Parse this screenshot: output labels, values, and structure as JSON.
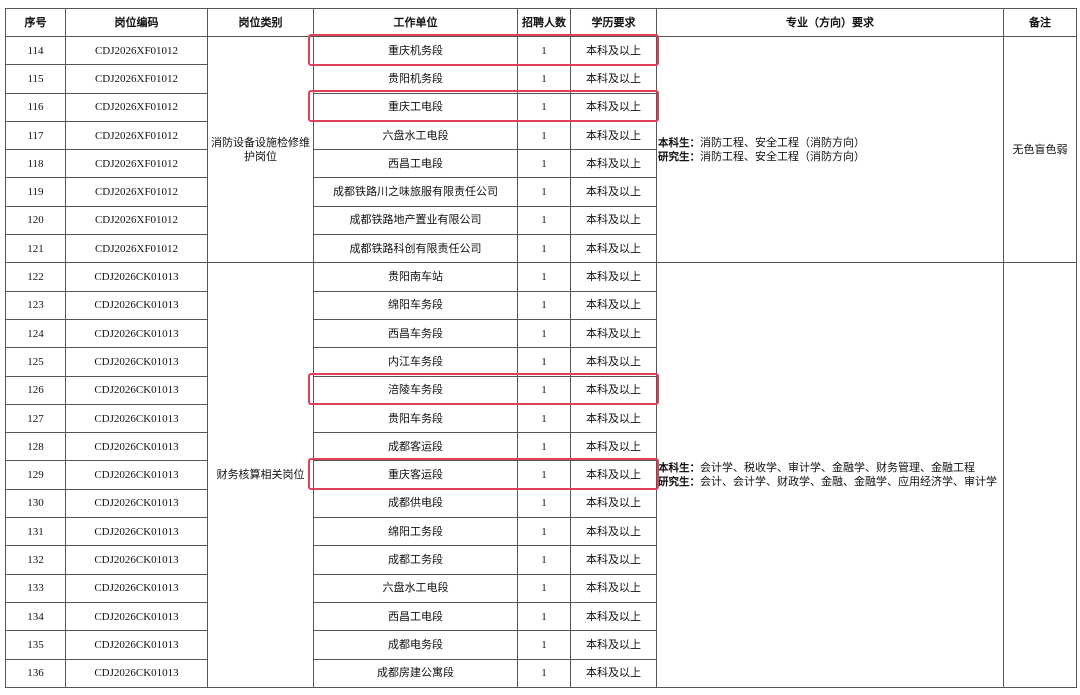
{
  "table": {
    "headers": [
      "序号",
      "岗位编码",
      "岗位类别",
      "工作单位",
      "招聘人数",
      "学历要求",
      "专业（方向）要求",
      "备注"
    ],
    "groups": [
      {
        "category": "消防设备设施检修维护岗位",
        "majors": [
          {
            "label": "本科生：",
            "text": "消防工程、安全工程（消防方向）"
          },
          {
            "label": "研究生：",
            "text": "消防工程、安全工程（消防方向）"
          }
        ],
        "note": "无色盲色弱",
        "rows": [
          [
            "114",
            "CDJ2026XF01012",
            "重庆机务段",
            "1",
            "本科及以上"
          ],
          [
            "115",
            "CDJ2026XF01012",
            "贵阳机务段",
            "1",
            "本科及以上"
          ],
          [
            "116",
            "CDJ2026XF01012",
            "重庆工电段",
            "1",
            "本科及以上"
          ],
          [
            "117",
            "CDJ2026XF01012",
            "六盘水工电段",
            "1",
            "本科及以上"
          ],
          [
            "118",
            "CDJ2026XF01012",
            "西昌工电段",
            "1",
            "本科及以上"
          ],
          [
            "119",
            "CDJ2026XF01012",
            "成都铁路川之味旅服有限责任公司",
            "1",
            "本科及以上"
          ],
          [
            "120",
            "CDJ2026XF01012",
            "成都铁路地产置业有限公司",
            "1",
            "本科及以上"
          ],
          [
            "121",
            "CDJ2026XF01012",
            "成都铁路科创有限责任公司",
            "1",
            "本科及以上"
          ]
        ]
      },
      {
        "category": "财务核算相关岗位",
        "majors": [
          {
            "label": "本科生：",
            "text": "会计学、税收学、审计学、金融学、财务管理、金融工程"
          },
          {
            "label": "研究生：",
            "text": "会计、会计学、财政学、金融、金融学、应用经济学、审计学"
          }
        ],
        "rows": [
          [
            "122",
            "CDJ2026CK01013",
            "贵阳南车站",
            "1",
            "本科及以上"
          ],
          [
            "123",
            "CDJ2026CK01013",
            "绵阳车务段",
            "1",
            "本科及以上"
          ],
          [
            "124",
            "CDJ2026CK01013",
            "西昌车务段",
            "1",
            "本科及以上"
          ],
          [
            "125",
            "CDJ2026CK01013",
            "内江车务段",
            "1",
            "本科及以上"
          ],
          [
            "126",
            "CDJ2026CK01013",
            "涪陵车务段",
            "1",
            "本科及以上"
          ],
          [
            "127",
            "CDJ2026CK01013",
            "贵阳车务段",
            "1",
            "本科及以上"
          ],
          [
            "128",
            "CDJ2026CK01013",
            "成都客运段",
            "1",
            "本科及以上"
          ],
          [
            "129",
            "CDJ2026CK01013",
            "重庆客运段",
            "1",
            "本科及以上"
          ],
          [
            "130",
            "CDJ2026CK01013",
            "成都供电段",
            "1",
            "本科及以上"
          ],
          [
            "131",
            "CDJ2026CK01013",
            "绵阳工务段",
            "1",
            "本科及以上"
          ],
          [
            "132",
            "CDJ2026CK01013",
            "成都工务段",
            "1",
            "本科及以上"
          ],
          [
            "133",
            "CDJ2026CK01013",
            "六盘水工电段",
            "1",
            "本科及以上"
          ],
          [
            "134",
            "CDJ2026CK01013",
            "西昌工电段",
            "1",
            "本科及以上"
          ],
          [
            "135",
            "CDJ2026CK01013",
            "成都电务段",
            "1",
            "本科及以上"
          ],
          [
            "136",
            "CDJ2026CK01013",
            "成都房建公寓段",
            "1",
            "本科及以上"
          ]
        ]
      }
    ]
  }
}
